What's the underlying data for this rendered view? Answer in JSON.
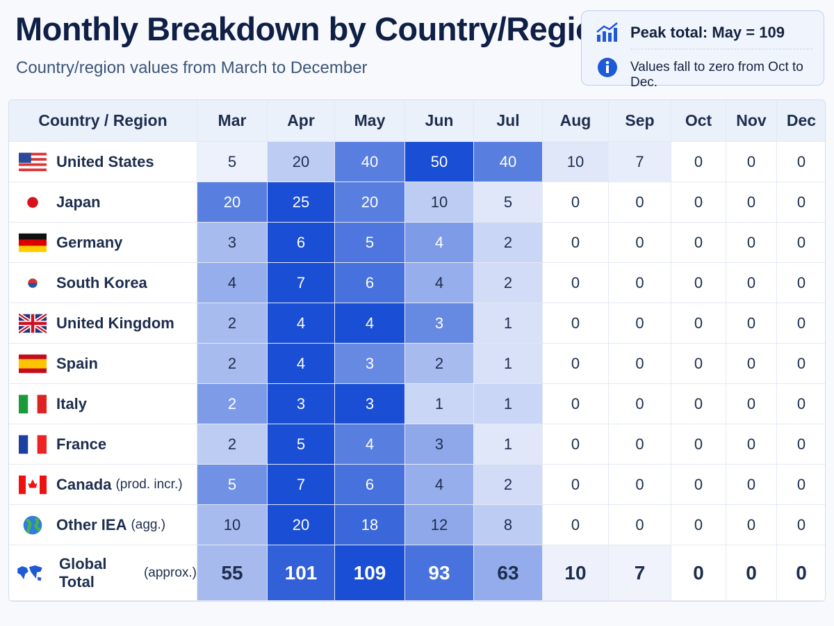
{
  "header": {
    "title": "Monthly Breakdown by Country/Region",
    "subtitle": "Country/region values from March to December"
  },
  "notes": [
    {
      "text": "Peak total: May = 109"
    },
    {
      "text": "Values fall to zero from Oct to Dec."
    }
  ],
  "table": {
    "columns": [
      "Country / Region",
      "Mar",
      "Apr",
      "May",
      "Jun",
      "Jul",
      "Aug",
      "Sep",
      "Oct",
      "Nov",
      "Dec"
    ],
    "rows": [
      {
        "label": "United States",
        "values": [
          5,
          20,
          40,
          50,
          40,
          10,
          7,
          0,
          0,
          0
        ]
      },
      {
        "label": "Japan",
        "values": [
          20,
          25,
          20,
          10,
          5,
          0,
          0,
          0,
          0,
          0
        ]
      },
      {
        "label": "Germany",
        "values": [
          3,
          6,
          5,
          4,
          2,
          0,
          0,
          0,
          0,
          0
        ]
      },
      {
        "label": "South Korea",
        "values": [
          4,
          7,
          6,
          4,
          2,
          0,
          0,
          0,
          0,
          0
        ]
      },
      {
        "label": "United Kingdom",
        "values": [
          2,
          4,
          4,
          3,
          1,
          0,
          0,
          0,
          0,
          0
        ]
      },
      {
        "label": "Spain",
        "values": [
          2,
          4,
          3,
          2,
          1,
          0,
          0,
          0,
          0,
          0
        ]
      },
      {
        "label": "Italy",
        "values": [
          2,
          3,
          3,
          1,
          1,
          0,
          0,
          0,
          0,
          0
        ]
      },
      {
        "label": "France",
        "values": [
          2,
          5,
          4,
          3,
          1,
          0,
          0,
          0,
          0,
          0
        ]
      },
      {
        "label": "Canada",
        "note": "(prod. incr.)",
        "values": [
          5,
          7,
          6,
          4,
          2,
          0,
          0,
          0,
          0,
          0
        ]
      },
      {
        "label": "Other IEA",
        "note": "(agg.)",
        "values": [
          10,
          20,
          18,
          12,
          8,
          0,
          0,
          0,
          0,
          0
        ]
      }
    ],
    "total": {
      "label": "Global Total",
      "note": "(approx.)",
      "values": [
        55,
        101,
        109,
        93,
        63,
        10,
        7,
        0,
        0,
        0
      ]
    }
  }
}
